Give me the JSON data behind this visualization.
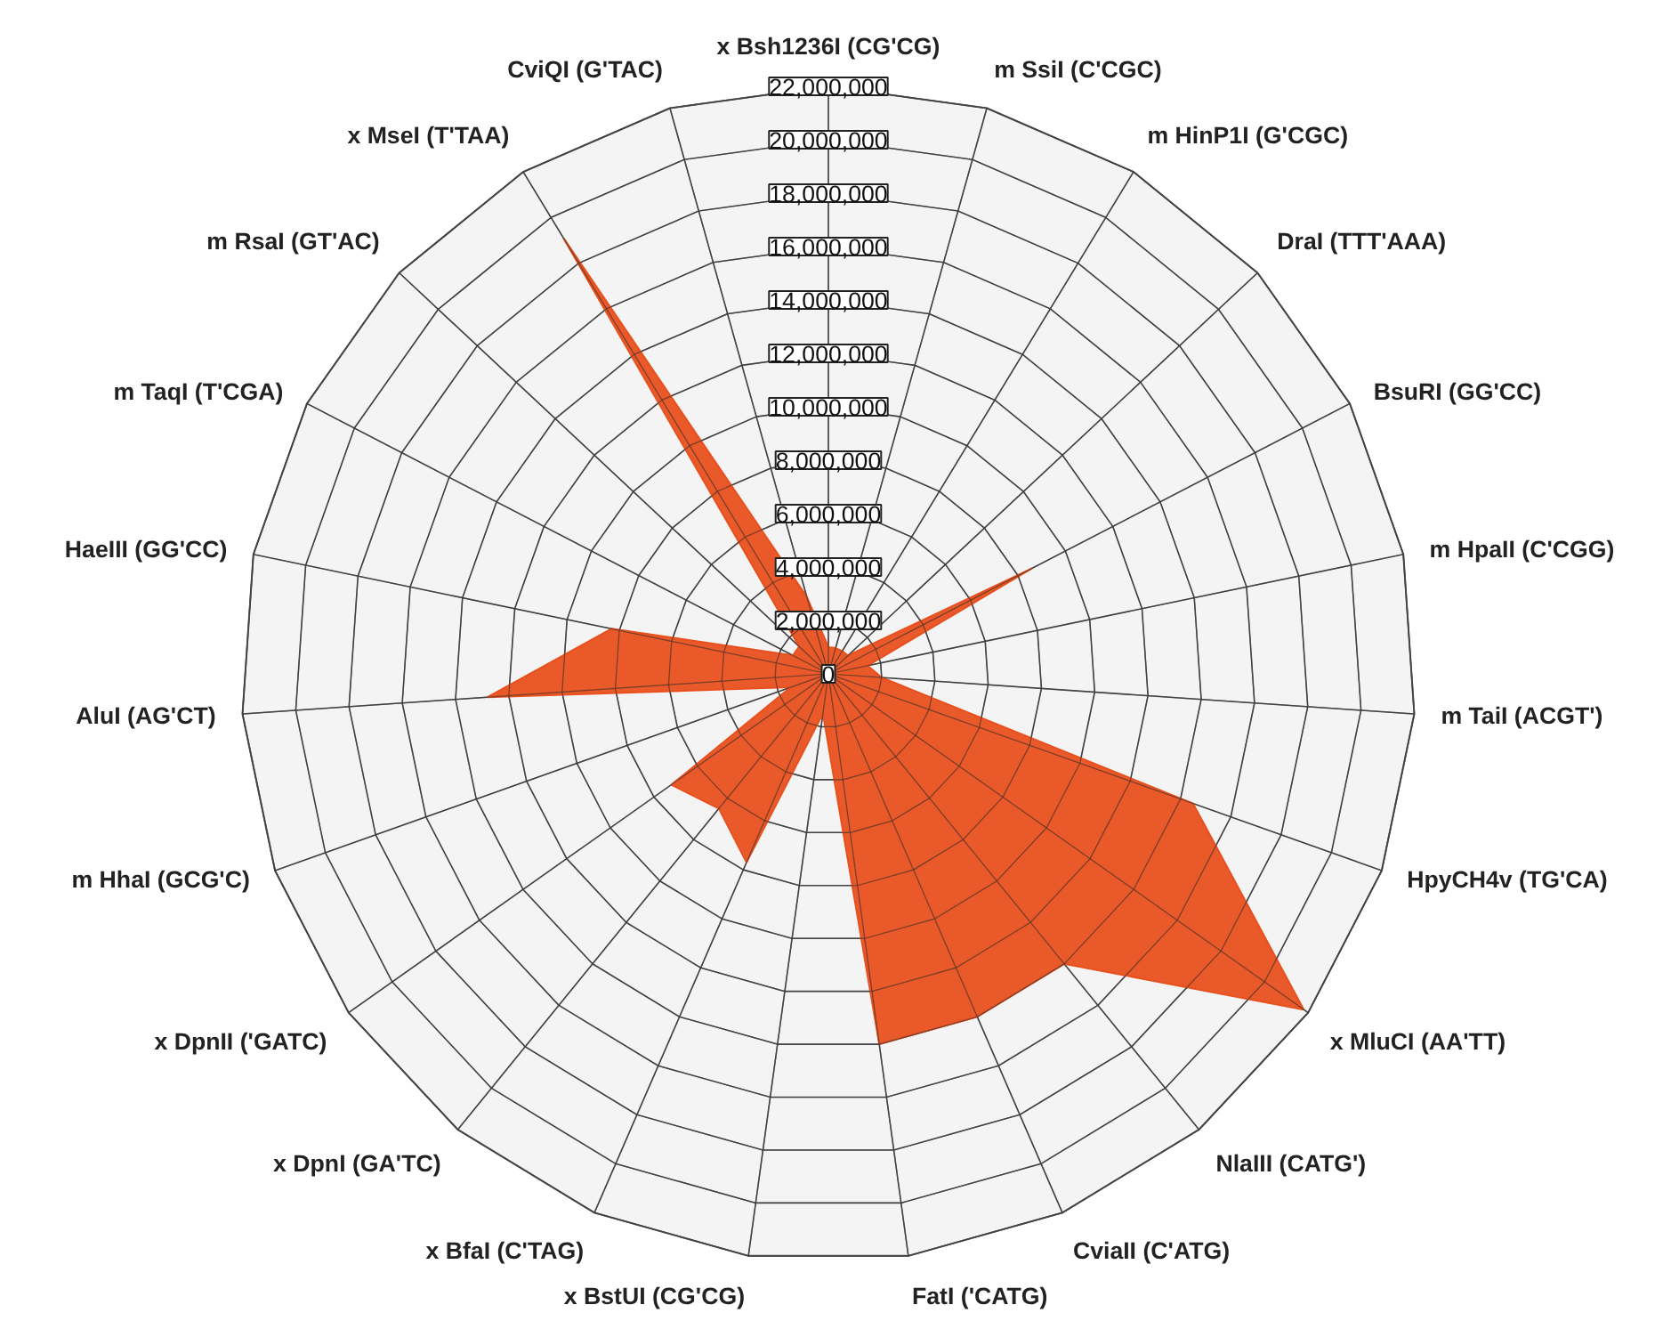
{
  "chart_data": {
    "type": "radar",
    "categories": [
      "x Bsh1236I (CG'CG)",
      "m SsiI (C'CGC)",
      "m HinP1I (G'CGC)",
      "DraI (TTT'AAA)",
      "BsuRI (GG'CC)",
      "m HpaII (C'CGG)",
      "m TaiI (ACGT')",
      "HpyCH4v (TG'CA)",
      "x MluCI (AA'TT)",
      "NlaIII (CATG')",
      "CviaII (C'ATG)",
      "FatI ('CATG)",
      "x BstUI (CG'CG)",
      "x BfaI (C'TAG)",
      "x DpnI (GA'TC)",
      "x DpnII ('GATC)",
      "m HhaI (GCG'C)",
      "AluI (AG'CT)",
      "HaeIII (GG'CC)",
      "m TaqI (T'CGA)",
      "m RsaI (GT'AC)",
      "x MseI (T'TAA)",
      "CviQI (G'TAC)"
    ],
    "series": [
      {
        "color": "#e8501e",
        "values": [
          1000000,
          1000000,
          1000000,
          1000000,
          8600000,
          1500000,
          2000000,
          14500000,
          21800000,
          14000000,
          14000000,
          14000000,
          1500000,
          7700000,
          6500000,
          7200000,
          1500000,
          12800000,
          8300000,
          1500000,
          1500000,
          19100000,
          3000000
        ]
      }
    ],
    "ylim": [
      0,
      22000000
    ],
    "yticks": [
      {
        "value": 0,
        "label": "0"
      },
      {
        "value": 2000000,
        "label": "2,000,000"
      },
      {
        "value": 4000000,
        "label": "4,000,000"
      },
      {
        "value": 6000000,
        "label": "6,000,000"
      },
      {
        "value": 8000000,
        "label": "8,000,000"
      },
      {
        "value": 10000000,
        "label": "10,000,000"
      },
      {
        "value": 12000000,
        "label": "12,000,000"
      },
      {
        "value": 14000000,
        "label": "14,000,000"
      },
      {
        "value": 16000000,
        "label": "16,000,000"
      },
      {
        "value": 18000000,
        "label": "18,000,000"
      },
      {
        "value": 20000000,
        "label": "20,000,000"
      },
      {
        "value": 22000000,
        "label": "22,000,000"
      }
    ],
    "grid": true
  }
}
